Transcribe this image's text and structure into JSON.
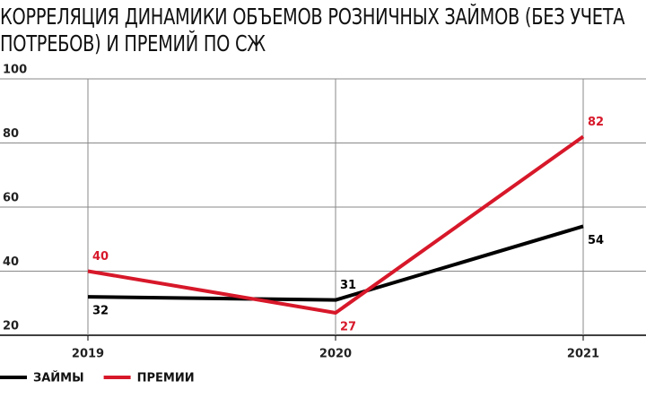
{
  "chart_data": {
    "type": "line",
    "title": "КОРРЕЛЯЦИЯ ДИНАМИКИ ОБЪЕМОВ РОЗНИЧНЫХ ЗАЙМОВ (БЕЗ УЧЕТА ПОТРЕБОВ) И ПРЕМИЙ ПО СЖ",
    "categories": [
      "2019",
      "2020",
      "2021"
    ],
    "series": [
      {
        "name": "ЗАЙМЫ",
        "color": "#000000",
        "values": [
          32,
          31,
          54
        ]
      },
      {
        "name": "ПРЕМИИ",
        "color": "#d7182a",
        "values": [
          40,
          27,
          82
        ]
      }
    ],
    "ylim": [
      20,
      100
    ],
    "yticks": [
      20,
      40,
      60,
      80,
      100
    ],
    "grid": true
  }
}
